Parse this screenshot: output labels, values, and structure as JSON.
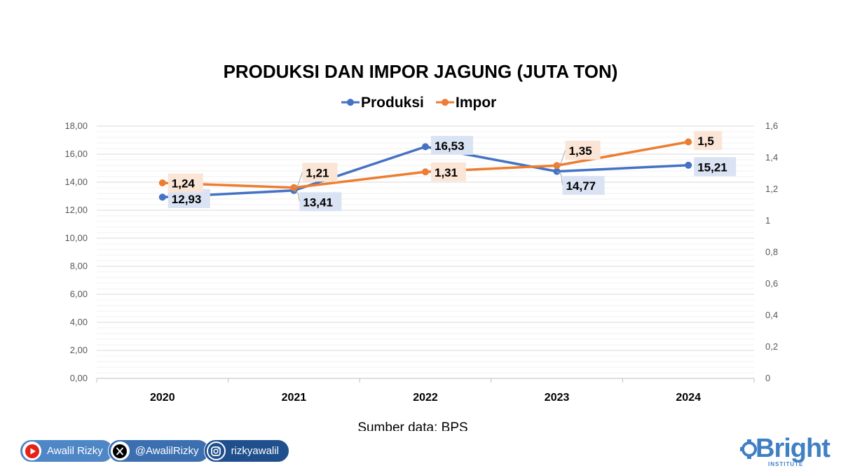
{
  "colors": {
    "produksi": "#4472c4",
    "impor": "#ed7d31",
    "produksi_label_bg": "#dae3f3",
    "impor_label_bg": "#fbe5d6"
  },
  "chart_data": {
    "type": "line",
    "title": "PRODUKSI DAN IMPOR JAGUNG (JUTA TON)",
    "categories": [
      "2020",
      "2021",
      "2022",
      "2023",
      "2024"
    ],
    "series": [
      {
        "name": "Produksi",
        "axis": "left",
        "values": [
          12.93,
          13.41,
          16.53,
          14.77,
          15.21
        ],
        "labels": [
          "12,93",
          "13,41",
          "16,53",
          "14,77",
          "15,21"
        ]
      },
      {
        "name": "Impor",
        "axis": "right",
        "values": [
          1.24,
          1.21,
          1.31,
          1.35,
          1.5
        ],
        "labels": [
          "1,24",
          "1,21",
          "1,31",
          "1,35",
          "1,5"
        ]
      }
    ],
    "left_axis": {
      "ylim": [
        0,
        18
      ],
      "ticks": [
        "0,00",
        "2,00",
        "4,00",
        "6,00",
        "8,00",
        "10,00",
        "12,00",
        "14,00",
        "16,00",
        "18,00"
      ]
    },
    "right_axis": {
      "ylim": [
        0,
        1.6
      ],
      "ticks": [
        "0",
        "0,2",
        "0,4",
        "0,6",
        "0,8",
        "1",
        "1,2",
        "1,4",
        "1,6"
      ]
    },
    "legend": "top",
    "grid": true,
    "source": "Sumber data: BPS"
  },
  "footer": {
    "youtube_label": "Awalil Rizky",
    "x_label": "@AwalilRizky",
    "instagram_label": "rizkyawalil",
    "brand_name": "Bright",
    "brand_sub": "INSTITUTE"
  }
}
